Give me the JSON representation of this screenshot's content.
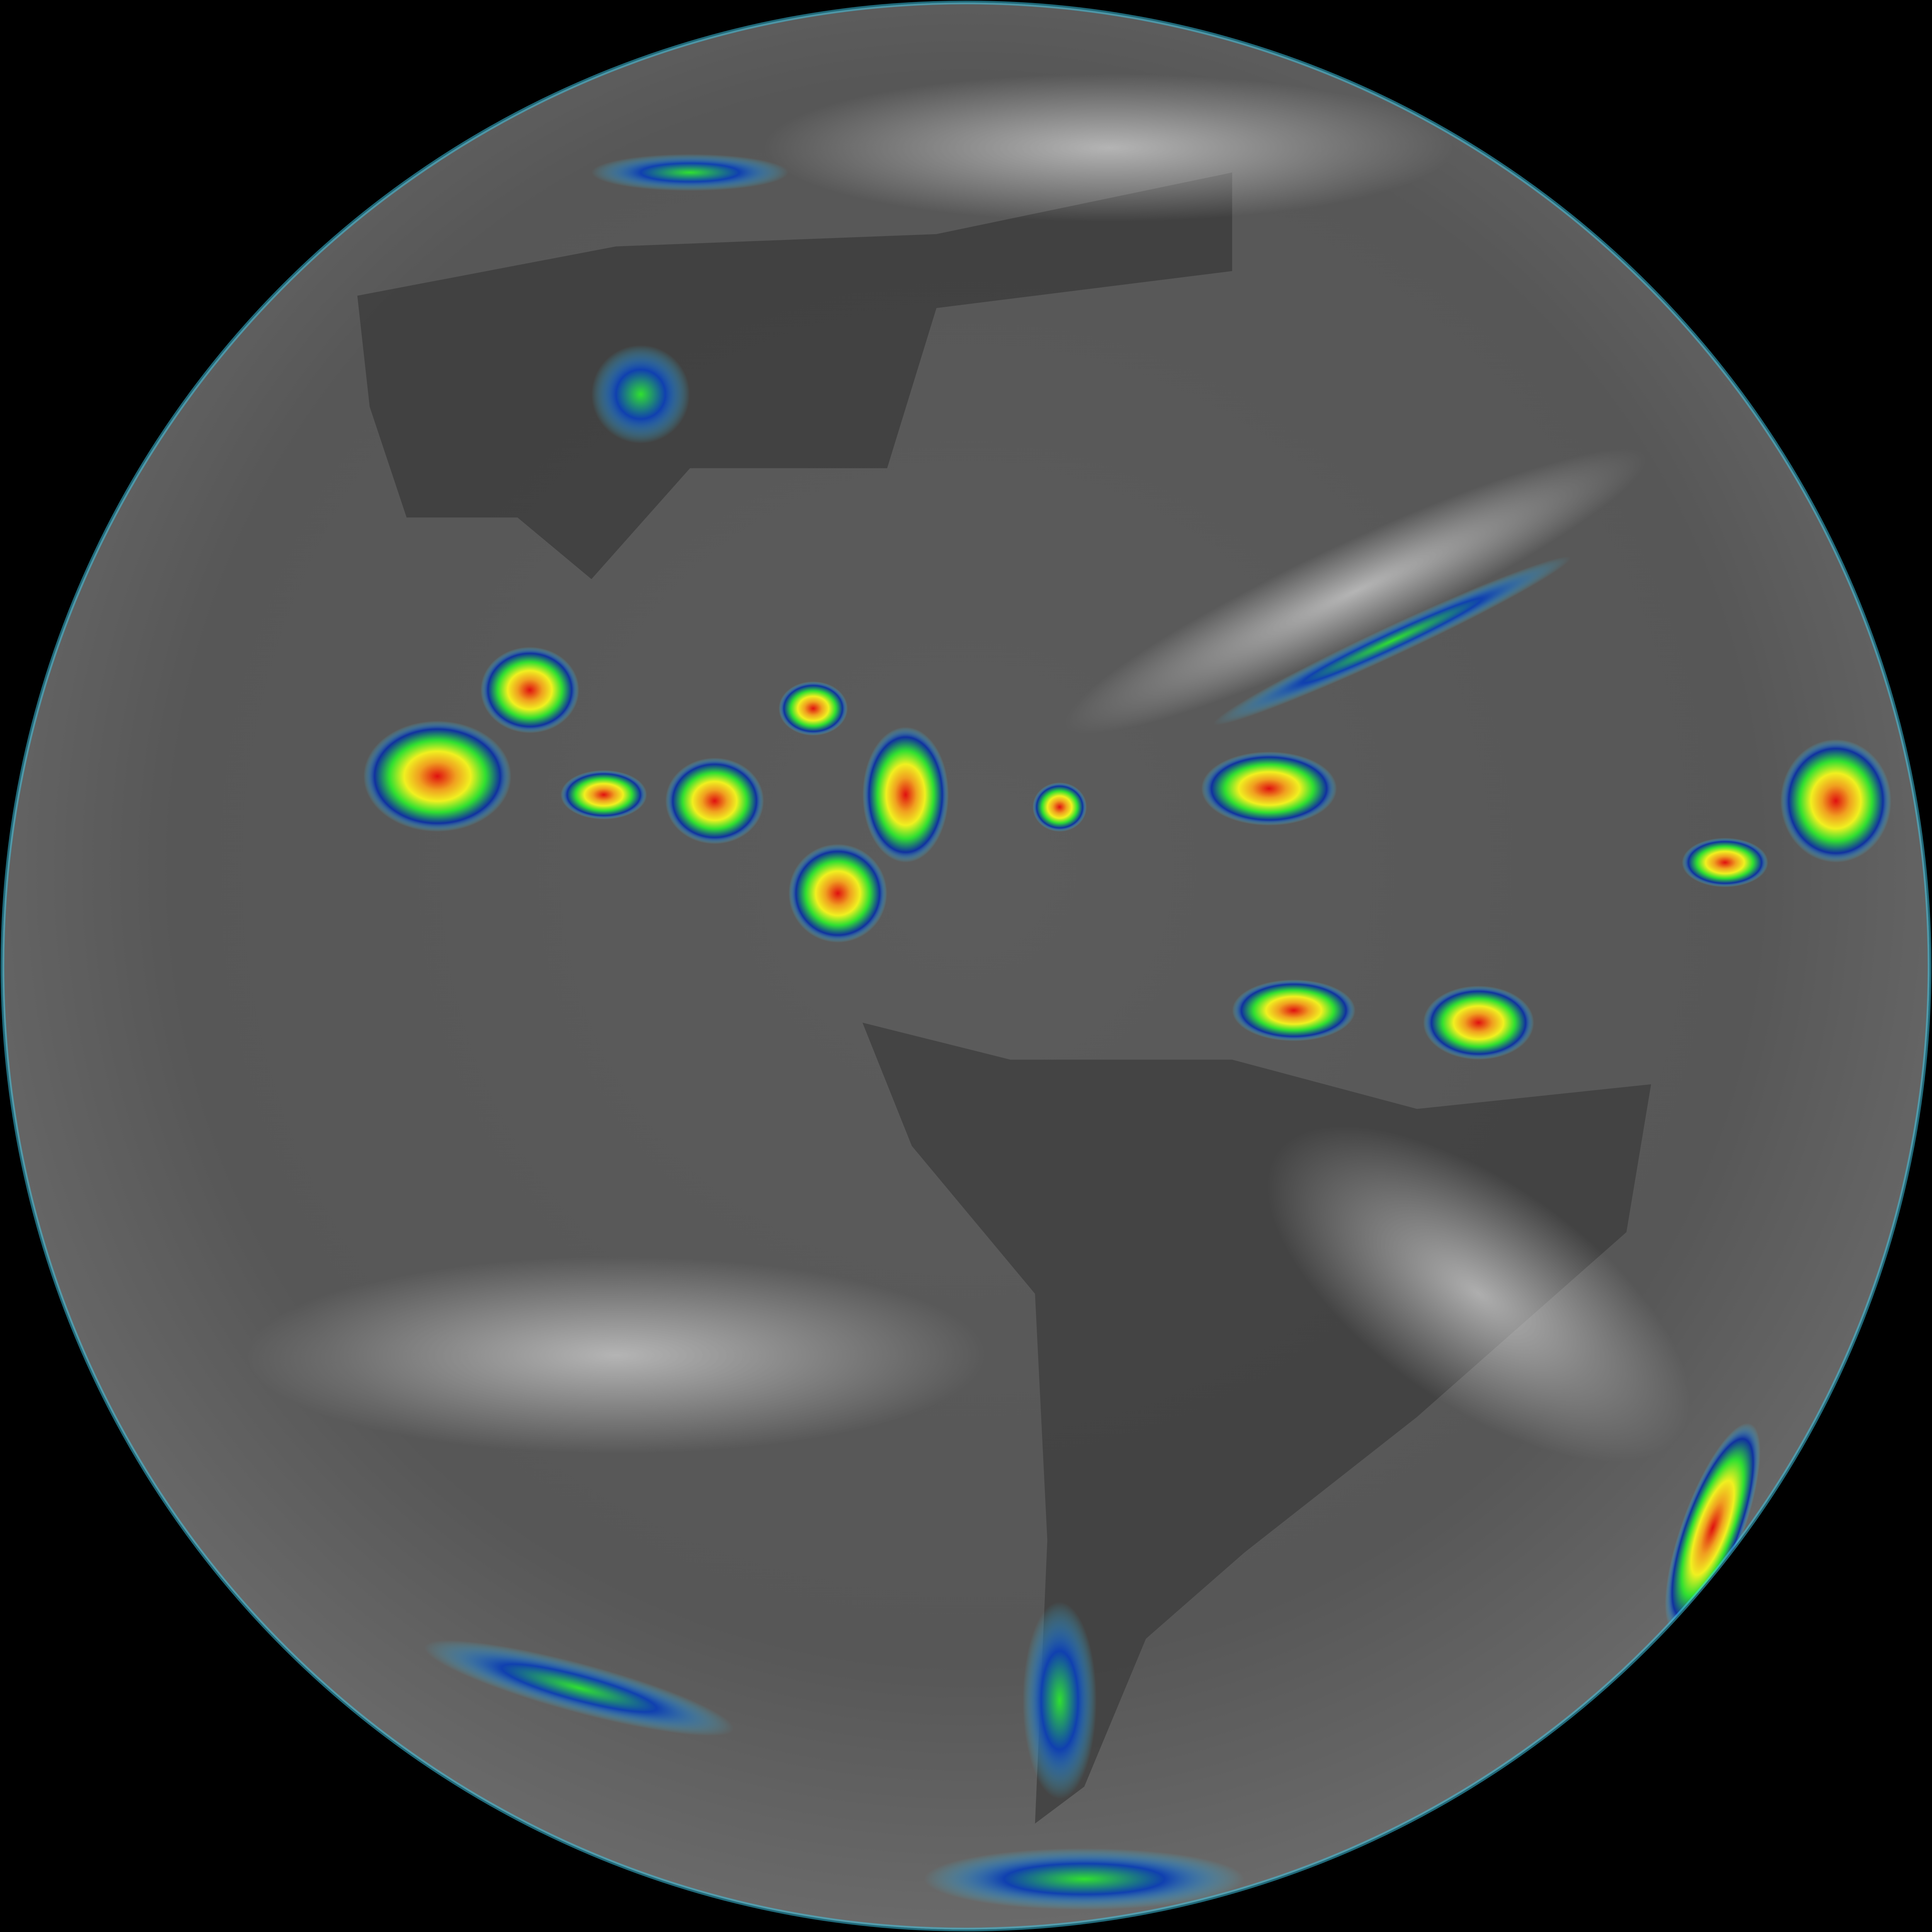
{
  "image": {
    "kind": "full-disk infrared satellite view of Earth",
    "colors": {
      "space": "#000000",
      "cloud_free_ocean": "#5a5a5a",
      "land_dark": "#3a3a3a",
      "cold_cloud_white": "#e6e6e6",
      "enhancement_cyan": "#3fd0f0",
      "enhancement_blue": "#1030a0",
      "enhancement_green": "#30e030",
      "enhancement_yellow": "#f0f020",
      "enhancement_red": "#e01010",
      "borders": "#d8d8d8"
    }
  }
}
